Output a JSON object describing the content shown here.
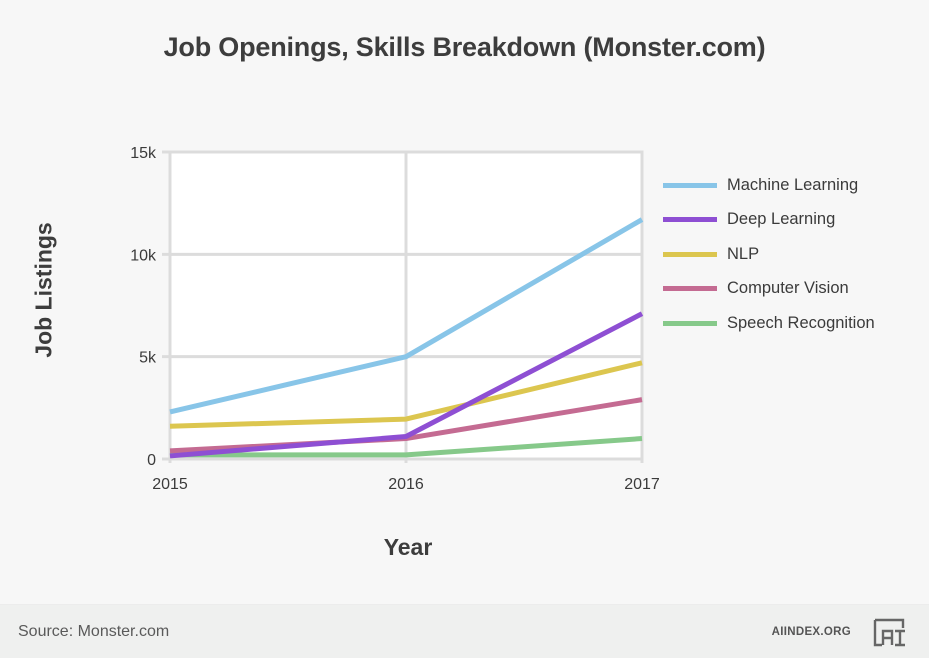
{
  "title": "Job Openings, Skills Breakdown (Monster.com)",
  "axes": {
    "ylabel": "Job Listings",
    "xlabel": "Year",
    "yticks": [
      "0",
      "5k",
      "10k",
      "15k"
    ],
    "xticks": [
      "2015",
      "2016",
      "2017"
    ]
  },
  "legend": [
    {
      "label": "Machine Learning",
      "color": "#88c5e8"
    },
    {
      "label": "Deep Learning",
      "color": "#8e4fd3"
    },
    {
      "label": "NLP",
      "color": "#dcc64f"
    },
    {
      "label": "Computer Vision",
      "color": "#c46b92"
    },
    {
      "label": "Speech Recognition",
      "color": "#86c98a"
    }
  ],
  "footer": {
    "source": "Source: Monster.com",
    "brand": "AIINDEX.ORG",
    "logo_icon": "ai-index-logo-icon"
  },
  "chart_data": {
    "type": "line",
    "title": "Job Openings, Skills Breakdown (Monster.com)",
    "xlabel": "Year",
    "ylabel": "Job Listings",
    "x": [
      2015,
      2016,
      2017
    ],
    "ylim": [
      0,
      15000
    ],
    "yticks": [
      0,
      5000,
      10000,
      15000
    ],
    "ytick_labels": [
      "0",
      "5k",
      "10k",
      "15k"
    ],
    "grid": true,
    "legend_position": "right",
    "series": [
      {
        "name": "Machine Learning",
        "color": "#88c5e8",
        "values": [
          2300,
          5000,
          11700
        ]
      },
      {
        "name": "Deep Learning",
        "color": "#8e4fd3",
        "values": [
          150,
          1100,
          7100
        ]
      },
      {
        "name": "NLP",
        "color": "#dcc64f",
        "values": [
          1600,
          1950,
          4700
        ]
      },
      {
        "name": "Computer Vision",
        "color": "#c46b92",
        "values": [
          400,
          1000,
          2900
        ]
      },
      {
        "name": "Speech Recognition",
        "color": "#86c98a",
        "values": [
          200,
          200,
          1000
        ]
      }
    ]
  }
}
